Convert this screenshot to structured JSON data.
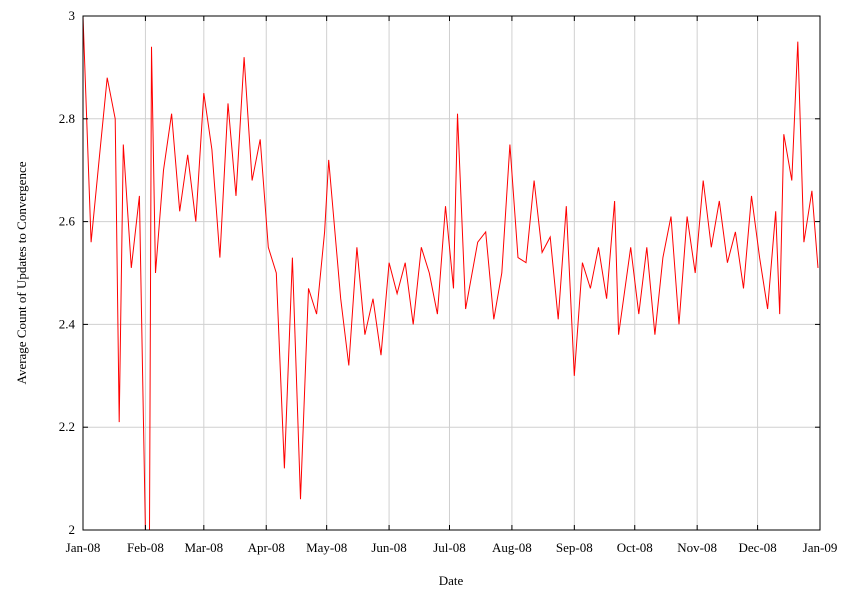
{
  "chart_data": {
    "type": "line",
    "title": "",
    "xlabel": "Date",
    "ylabel": "Average Count of Updates to Convergence",
    "ylim": [
      2,
      3
    ],
    "xlim": [
      "2008-01-01",
      "2009-01-01"
    ],
    "yticks": [
      "2",
      "2.2",
      "2.4",
      "2.6",
      "2.8",
      "3"
    ],
    "xticks": [
      {
        "date": "2008-01-01",
        "label": "Jan-08"
      },
      {
        "date": "2008-02-01",
        "label": "Feb-08"
      },
      {
        "date": "2008-03-01",
        "label": "Mar-08"
      },
      {
        "date": "2008-04-01",
        "label": "Apr-08"
      },
      {
        "date": "2008-05-01",
        "label": "May-08"
      },
      {
        "date": "2008-06-01",
        "label": "Jun-08"
      },
      {
        "date": "2008-07-01",
        "label": "Jul-08"
      },
      {
        "date": "2008-08-01",
        "label": "Aug-08"
      },
      {
        "date": "2008-09-01",
        "label": "Sep-08"
      },
      {
        "date": "2008-10-01",
        "label": "Oct-08"
      },
      {
        "date": "2008-11-01",
        "label": "Nov-08"
      },
      {
        "date": "2008-12-01",
        "label": "Dec-08"
      },
      {
        "date": "2009-01-01",
        "label": "Jan-09"
      }
    ],
    "grid": true,
    "line_color": "#ff0000",
    "series": [
      {
        "points": [
          [
            "2008-01-01",
            3.0
          ],
          [
            "2008-01-05",
            2.56
          ],
          [
            "2008-01-09",
            2.72
          ],
          [
            "2008-01-13",
            2.88
          ],
          [
            "2008-01-17",
            2.8
          ],
          [
            "2008-01-19",
            2.21
          ],
          [
            "2008-01-21",
            2.75
          ],
          [
            "2008-01-25",
            2.51
          ],
          [
            "2008-01-29",
            2.65
          ],
          [
            "2008-02-01",
            2.0
          ],
          [
            "2008-02-03",
            2.0
          ],
          [
            "2008-02-04",
            2.94
          ],
          [
            "2008-02-06",
            2.5
          ],
          [
            "2008-02-10",
            2.7
          ],
          [
            "2008-02-14",
            2.81
          ],
          [
            "2008-02-18",
            2.62
          ],
          [
            "2008-02-22",
            2.73
          ],
          [
            "2008-02-26",
            2.6
          ],
          [
            "2008-03-01",
            2.85
          ],
          [
            "2008-03-05",
            2.74
          ],
          [
            "2008-03-09",
            2.53
          ],
          [
            "2008-03-13",
            2.83
          ],
          [
            "2008-03-17",
            2.65
          ],
          [
            "2008-03-21",
            2.92
          ],
          [
            "2008-03-25",
            2.68
          ],
          [
            "2008-03-29",
            2.76
          ],
          [
            "2008-04-02",
            2.55
          ],
          [
            "2008-04-06",
            2.5
          ],
          [
            "2008-04-10",
            2.12
          ],
          [
            "2008-04-14",
            2.53
          ],
          [
            "2008-04-18",
            2.06
          ],
          [
            "2008-04-22",
            2.47
          ],
          [
            "2008-04-26",
            2.42
          ],
          [
            "2008-04-30",
            2.58
          ],
          [
            "2008-05-02",
            2.72
          ],
          [
            "2008-05-08",
            2.45
          ],
          [
            "2008-05-12",
            2.32
          ],
          [
            "2008-05-16",
            2.55
          ],
          [
            "2008-05-20",
            2.38
          ],
          [
            "2008-05-24",
            2.45
          ],
          [
            "2008-05-28",
            2.34
          ],
          [
            "2008-06-01",
            2.52
          ],
          [
            "2008-06-05",
            2.46
          ],
          [
            "2008-06-09",
            2.52
          ],
          [
            "2008-06-13",
            2.4
          ],
          [
            "2008-06-17",
            2.55
          ],
          [
            "2008-06-21",
            2.5
          ],
          [
            "2008-06-25",
            2.42
          ],
          [
            "2008-06-29",
            2.63
          ],
          [
            "2008-07-03",
            2.47
          ],
          [
            "2008-07-05",
            2.81
          ],
          [
            "2008-07-09",
            2.43
          ],
          [
            "2008-07-15",
            2.56
          ],
          [
            "2008-07-19",
            2.58
          ],
          [
            "2008-07-23",
            2.41
          ],
          [
            "2008-07-27",
            2.5
          ],
          [
            "2008-07-31",
            2.75
          ],
          [
            "2008-08-04",
            2.53
          ],
          [
            "2008-08-08",
            2.52
          ],
          [
            "2008-08-12",
            2.68
          ],
          [
            "2008-08-16",
            2.54
          ],
          [
            "2008-08-20",
            2.57
          ],
          [
            "2008-08-24",
            2.41
          ],
          [
            "2008-08-28",
            2.63
          ],
          [
            "2008-09-01",
            2.3
          ],
          [
            "2008-09-05",
            2.52
          ],
          [
            "2008-09-09",
            2.47
          ],
          [
            "2008-09-13",
            2.55
          ],
          [
            "2008-09-17",
            2.45
          ],
          [
            "2008-09-21",
            2.64
          ],
          [
            "2008-09-23",
            2.38
          ],
          [
            "2008-09-29",
            2.55
          ],
          [
            "2008-10-03",
            2.42
          ],
          [
            "2008-10-07",
            2.55
          ],
          [
            "2008-10-11",
            2.38
          ],
          [
            "2008-10-15",
            2.53
          ],
          [
            "2008-10-19",
            2.61
          ],
          [
            "2008-10-23",
            2.4
          ],
          [
            "2008-10-27",
            2.61
          ],
          [
            "2008-10-31",
            2.5
          ],
          [
            "2008-11-04",
            2.68
          ],
          [
            "2008-11-08",
            2.55
          ],
          [
            "2008-11-12",
            2.64
          ],
          [
            "2008-11-16",
            2.52
          ],
          [
            "2008-11-20",
            2.58
          ],
          [
            "2008-11-24",
            2.47
          ],
          [
            "2008-11-28",
            2.65
          ],
          [
            "2008-12-02",
            2.53
          ],
          [
            "2008-12-06",
            2.43
          ],
          [
            "2008-12-10",
            2.62
          ],
          [
            "2008-12-12",
            2.42
          ],
          [
            "2008-12-14",
            2.77
          ],
          [
            "2008-12-18",
            2.68
          ],
          [
            "2008-12-21",
            2.95
          ],
          [
            "2008-12-24",
            2.56
          ],
          [
            "2008-12-28",
            2.66
          ],
          [
            "2008-12-31",
            2.51
          ]
        ]
      }
    ]
  }
}
